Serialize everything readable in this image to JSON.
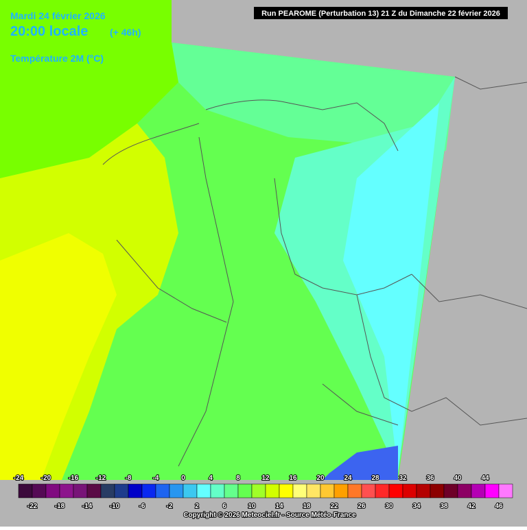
{
  "header": {
    "date": "Mardi 24 février 2026",
    "time": "20:00 locale",
    "lead": "(+ 46h)",
    "variable": "Température 2M (°C)",
    "run": "Run PEAROME (Perturbation 13) 21 Z du Dimanche 22 février 2026"
  },
  "legend": {
    "values": [
      -24,
      -22,
      -20,
      -18,
      -16,
      -14,
      -12,
      -10,
      -8,
      -6,
      -4,
      -2,
      0,
      2,
      4,
      6,
      8,
      10,
      12,
      14,
      16,
      18,
      20,
      22,
      24,
      26,
      28,
      30,
      32,
      34,
      36,
      38,
      40,
      42,
      44,
      46
    ],
    "colors": [
      "#3c0a3c",
      "#550a55",
      "#800a80",
      "#8c148c",
      "#781478",
      "#5a0a46",
      "#283c64",
      "#1e3c8c",
      "#0000c8",
      "#0a28f0",
      "#1e64f0",
      "#2896f0",
      "#3cc8f0",
      "#64ffff",
      "#64ffc8",
      "#64ff8c",
      "#64ff50",
      "#a0ff28",
      "#d2ff00",
      "#ffff00",
      "#ffff78",
      "#ffe664",
      "#ffc832",
      "#ffa000",
      "#ff7828",
      "#ff5050",
      "#ff2828",
      "#ff0000",
      "#dc0000",
      "#b40000",
      "#8c0000",
      "#6e0028",
      "#8c0064",
      "#b400b4",
      "#ff00ff",
      "#ff78ff"
    ]
  },
  "footer": {
    "copyright": "Copyright © 2026 Meteociel.fr - Source Météo-France"
  }
}
